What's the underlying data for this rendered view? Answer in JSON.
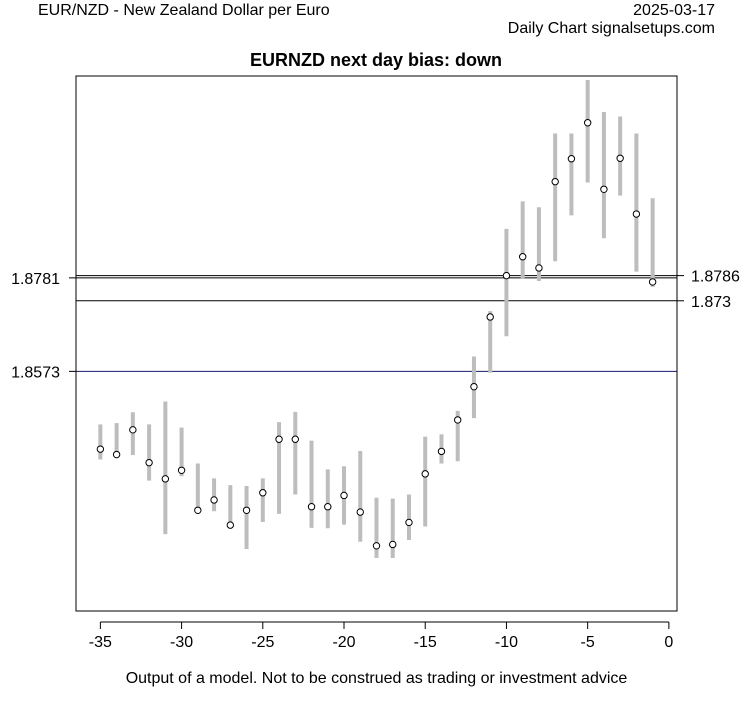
{
  "header": {
    "instrument": "EUR/NZD - New Zealand Dollar per Euro",
    "date": "2025-03-17",
    "source": "Daily Chart signalsetups.com"
  },
  "footer": {
    "disclaimer": "Output of a model. Not to be construed as trading or investment advice"
  },
  "colors": {
    "range_bar": "#bdbdbd",
    "close_point_fill": "#ffffff",
    "level_line": "#000000",
    "support_line": "#1a1a6e",
    "frame": "#000000"
  },
  "chart_data": {
    "type": "scatter",
    "title": "EURNZD next day bias: down",
    "xlabel": "",
    "ylabel": "",
    "xlim": [
      -36.5,
      0.5
    ],
    "ylim": [
      1.804,
      1.923
    ],
    "x_ticks": [
      -35,
      -30,
      -25,
      -20,
      -15,
      -10,
      -5,
      0
    ],
    "grid": false,
    "series": [
      {
        "x": [
          -35,
          -34,
          -33,
          -32,
          -31,
          -30,
          -29,
          -28,
          -27,
          -26,
          -25,
          -24,
          -23,
          -22,
          -21,
          -20,
          -19,
          -18,
          -17,
          -16,
          -15,
          -14,
          -13,
          -12,
          -11,
          -10,
          -9,
          -8,
          -7,
          -6,
          -5,
          -4,
          -3,
          -2,
          -1
        ],
        "close": [
          1.84,
          1.8388,
          1.8443,
          1.837,
          1.8334,
          1.8353,
          1.8264,
          1.8287,
          1.8231,
          1.8264,
          1.8303,
          1.8422,
          1.8422,
          1.8272,
          1.8272,
          1.8297,
          1.826,
          1.8185,
          1.8188,
          1.8237,
          1.8345,
          1.8395,
          1.8465,
          1.8539,
          1.8694,
          1.8786,
          1.8828,
          1.8803,
          1.8995,
          1.9046,
          1.9126,
          1.8978,
          1.9047,
          1.8923,
          1.8772
        ],
        "high": [
          1.8455,
          1.8458,
          1.8482,
          1.8455,
          1.8506,
          1.8448,
          1.8368,
          1.8335,
          1.832,
          1.8318,
          1.8335,
          1.846,
          1.8483,
          1.8419,
          1.8355,
          1.8362,
          1.8396,
          1.8292,
          1.829,
          1.8299,
          1.8428,
          1.8433,
          1.8485,
          1.8606,
          1.8707,
          1.889,
          1.8951,
          1.8938,
          1.9102,
          1.9102,
          1.9221,
          1.915,
          1.914,
          1.9102,
          1.8958
        ],
        "low": [
          1.8377,
          1.838,
          1.8387,
          1.833,
          1.8211,
          1.834,
          1.8264,
          1.8262,
          1.8226,
          1.8178,
          1.8238,
          1.8256,
          1.8299,
          1.8225,
          1.8224,
          1.8232,
          1.8194,
          1.8158,
          1.8158,
          1.8198,
          1.8228,
          1.8368,
          1.8373,
          1.8469,
          1.857,
          1.8651,
          1.878,
          1.8774,
          1.8818,
          1.892,
          1.8993,
          1.8869,
          1.8964,
          1.8795,
          1.8761
        ]
      }
    ],
    "levels": [
      {
        "value": 1.8786,
        "label": "1.8786",
        "side": "right",
        "color": "#000000"
      },
      {
        "value": 1.8781,
        "label": "1.8781",
        "side": "left",
        "color": "#000000"
      },
      {
        "value": 1.873,
        "label": "1.873",
        "side": "right",
        "color": "#000000"
      },
      {
        "value": 1.8573,
        "label": "1.8573",
        "side": "left",
        "color": "#1a1a6e"
      }
    ]
  }
}
